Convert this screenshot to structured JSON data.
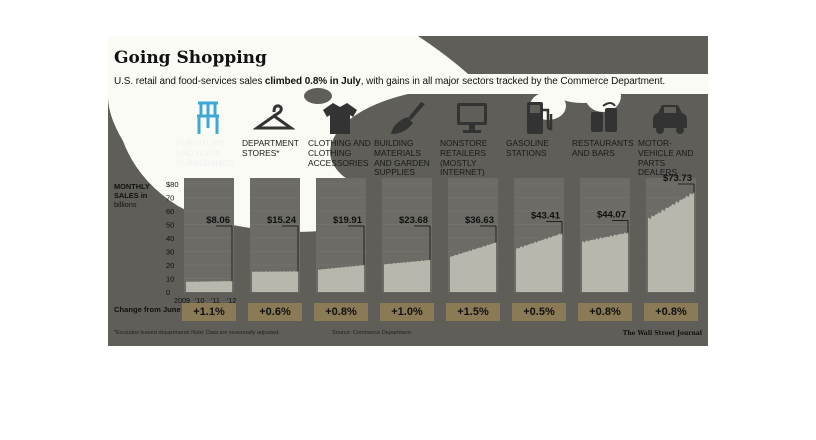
{
  "header": {
    "title": "Going Shopping",
    "subtitle_pre": "U.S. retail and food-services sales ",
    "subtitle_bold": "climbed 0.8% in July",
    "subtitle_post": ", with gains in all major sectors tracked by the Commerce Department."
  },
  "ylabel_main": "MONTHLY SALES in",
  "ylabel_unit": "billions",
  "change_label": "Change from June",
  "footnote": "*Excludes leased departments   Note: Data are seasonally adjusted.",
  "source": "Source: Commerce Department",
  "credit": "The Wall Street Journal",
  "chart_data": {
    "type": "area",
    "title": "Going Shopping",
    "ylabel": "MONTHLY SALES in billions",
    "ylim": [
      0,
      80
    ],
    "yticks": [
      "$80",
      "70",
      "60",
      "50",
      "40",
      "30",
      "20",
      "10",
      "0"
    ],
    "xticks": [
      "2009",
      "'10",
      "'11",
      "'12"
    ],
    "grid": true,
    "series": [
      {
        "name": "FURNITURE AND HOME FURNISHINGS",
        "icon": "chair-icon",
        "start": 7.6,
        "end": 8.06,
        "label": "$8.06",
        "change": "+1.1%"
      },
      {
        "name": "DEPARTMENT STORES*",
        "icon": "hanger-icon",
        "start": 15.0,
        "end": 15.24,
        "label": "$15.24",
        "change": "+0.6%"
      },
      {
        "name": "CLOTHING AND CLOTHING ACCESSORIES",
        "icon": "shirt-icon",
        "start": 16.5,
        "end": 19.91,
        "label": "$19.91",
        "change": "+0.8%"
      },
      {
        "name": "BUILDING MATERIALS AND GARDEN SUPPLIES",
        "icon": "trowel-icon",
        "start": 20.5,
        "end": 23.68,
        "label": "$23.68",
        "change": "+1.0%"
      },
      {
        "name": "NONSTORE RETAILERS (MOSTLY INTERNET)",
        "icon": "computer-icon",
        "start": 26.0,
        "end": 36.63,
        "label": "$36.63",
        "change": "+1.5%"
      },
      {
        "name": "GASOLINE STATIONS",
        "icon": "gas-pump-icon",
        "start": 32.0,
        "end": 43.41,
        "label": "$43.41",
        "change": "+0.5%"
      },
      {
        "name": "RESTAURANTS AND BARS",
        "icon": "drinks-icon",
        "start": 37.0,
        "end": 44.07,
        "label": "$44.07",
        "change": "+0.8%"
      },
      {
        "name": "MOTOR-VEHICLE AND PARTS DEALERS",
        "icon": "car-icon",
        "start": 54.0,
        "end": 73.73,
        "label": "$73.73",
        "change": "+0.8%"
      }
    ]
  }
}
